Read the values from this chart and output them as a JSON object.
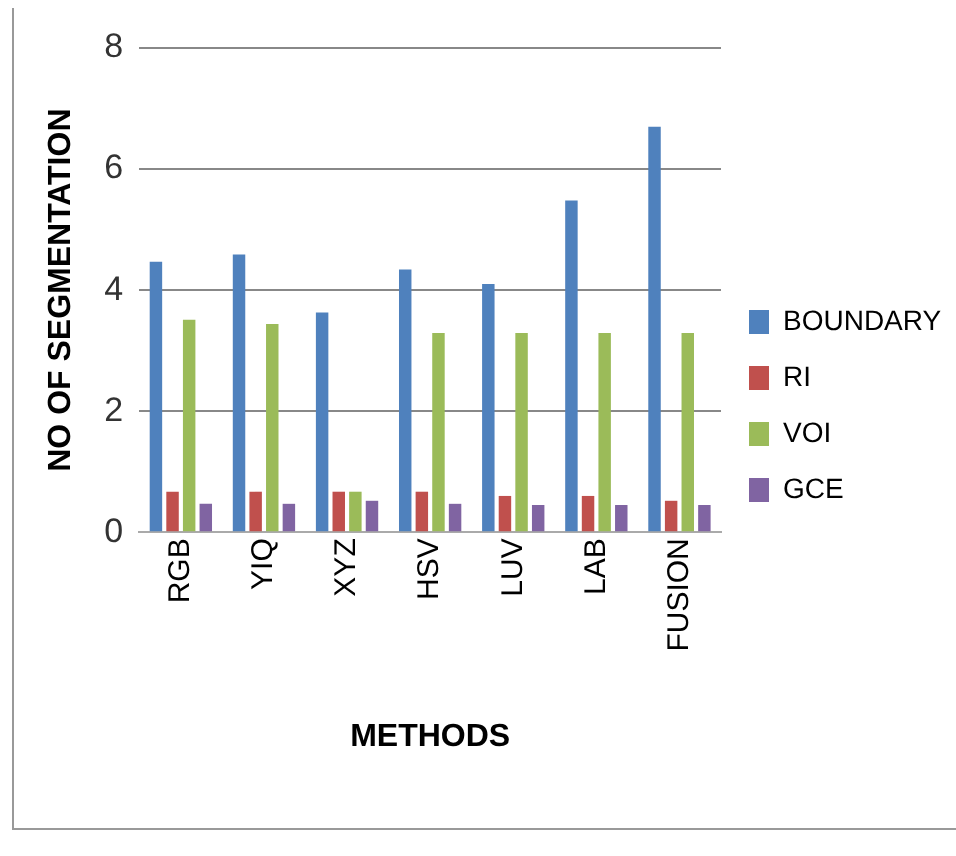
{
  "chart_data": {
    "type": "bar",
    "xlabel": "METHODS",
    "ylabel": "NO OF SEGMENTATION",
    "categories": [
      "RGB",
      "YIQ",
      "XYZ",
      "HSV",
      "LUV",
      "LAB",
      "FUSION"
    ],
    "series": [
      {
        "name": "BOUNDARY",
        "color": "#4f81bd",
        "values": [
          4.47,
          4.59,
          3.63,
          4.34,
          4.1,
          5.48,
          6.7
        ]
      },
      {
        "name": "RI",
        "color": "#c0504d",
        "values": [
          0.67,
          0.67,
          0.67,
          0.67,
          0.6,
          0.6,
          0.52
        ]
      },
      {
        "name": "VOI",
        "color": "#9bbb59",
        "values": [
          3.51,
          3.44,
          0.67,
          3.29,
          3.29,
          3.29,
          3.29
        ]
      },
      {
        "name": "GCE",
        "color": "#8064a2",
        "values": [
          0.47,
          0.47,
          0.52,
          0.47,
          0.45,
          0.45,
          0.45
        ]
      }
    ],
    "ylim": [
      0,
      8
    ],
    "yticks": [
      0,
      2,
      4,
      6,
      8
    ],
    "grid": "y",
    "legend": "right"
  }
}
